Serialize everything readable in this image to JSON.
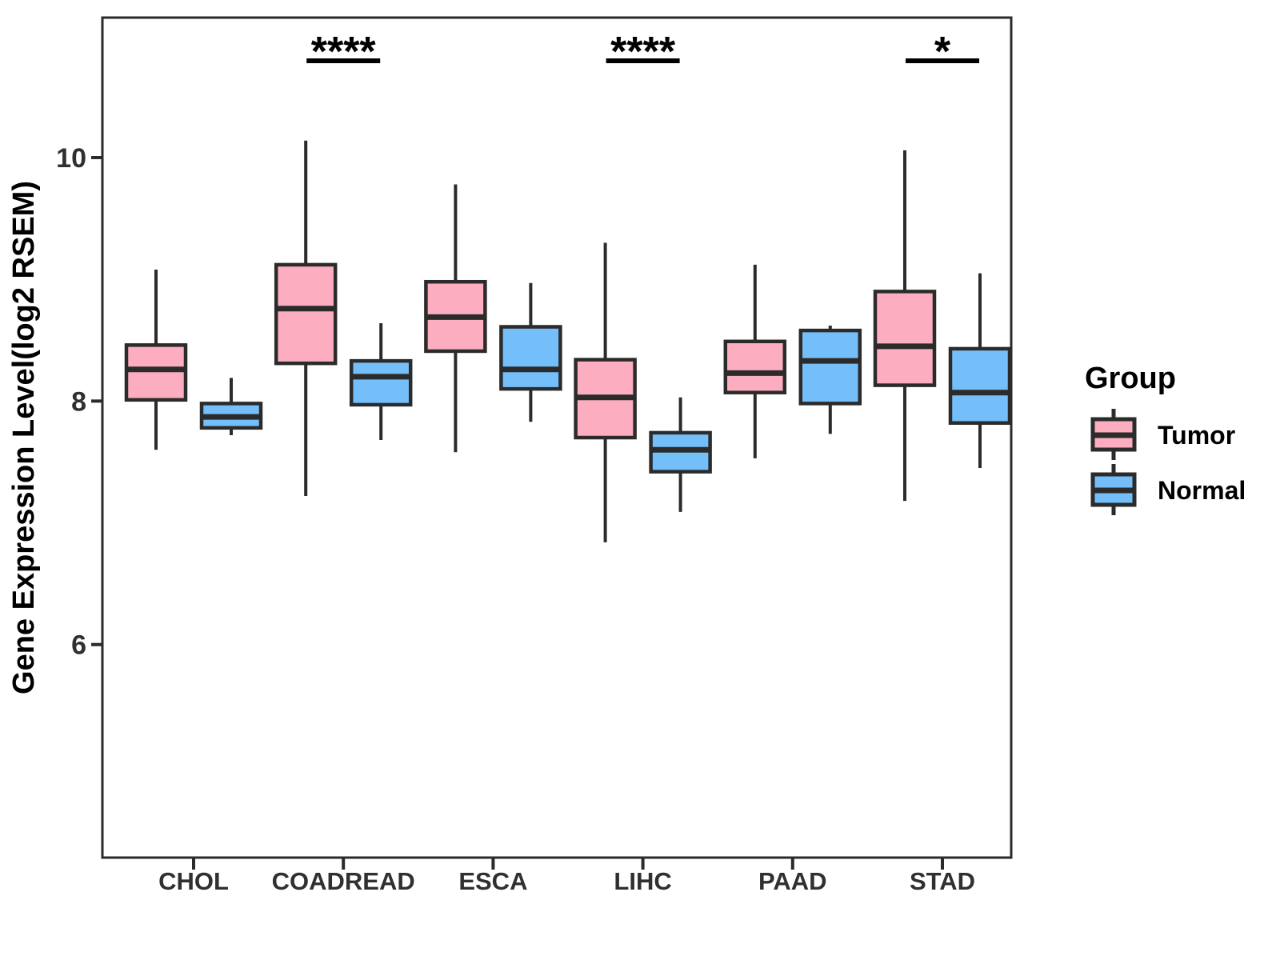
{
  "colors": {
    "tumor_fill": "#FCAEC0",
    "normal_fill": "#74BFFA",
    "stroke": "#2B2B2B",
    "tick_text": "#303030",
    "title_text": "#000000"
  },
  "chart_data": {
    "type": "boxplot",
    "title": "",
    "xlabel": "",
    "ylabel": "Gene Expression Level(log2 RSEM)",
    "categories": [
      "CHOL",
      "COADREAD",
      "ESCA",
      "LIHC",
      "PAAD",
      "STAD"
    ],
    "y_ticks": [
      6,
      8,
      10
    ],
    "ylim": [
      4.25,
      11.15
    ],
    "grid": false,
    "legend": {
      "title": "Group",
      "position": "right",
      "entries": [
        {
          "label": "Tumor",
          "color": "#FCAEC0"
        },
        {
          "label": "Normal",
          "color": "#74BFFA"
        }
      ]
    },
    "series": [
      {
        "name": "Tumor",
        "color": "#FCAEC0",
        "boxes": [
          {
            "category": "CHOL",
            "whisker_low": 7.6,
            "q1": 8.01,
            "median": 8.26,
            "q3": 8.46,
            "whisker_high": 9.08
          },
          {
            "category": "COADREAD",
            "whisker_low": 7.22,
            "q1": 8.31,
            "median": 8.76,
            "q3": 9.12,
            "whisker_high": 10.14
          },
          {
            "category": "ESCA",
            "whisker_low": 7.58,
            "q1": 8.41,
            "median": 8.69,
            "q3": 8.98,
            "whisker_high": 9.78
          },
          {
            "category": "LIHC",
            "whisker_low": 6.84,
            "q1": 7.7,
            "median": 8.03,
            "q3": 8.34,
            "whisker_high": 9.3
          },
          {
            "category": "PAAD",
            "whisker_low": 7.53,
            "q1": 8.07,
            "median": 8.23,
            "q3": 8.49,
            "whisker_high": 9.12
          },
          {
            "category": "STAD",
            "whisker_low": 7.18,
            "q1": 8.13,
            "median": 8.45,
            "q3": 8.9,
            "whisker_high": 10.06
          }
        ]
      },
      {
        "name": "Normal",
        "color": "#74BFFA",
        "boxes": [
          {
            "category": "CHOL",
            "whisker_low": 7.72,
            "q1": 7.78,
            "median": 7.87,
            "q3": 7.98,
            "whisker_high": 8.19
          },
          {
            "category": "COADREAD",
            "whisker_low": 7.68,
            "q1": 7.97,
            "median": 8.2,
            "q3": 8.33,
            "whisker_high": 8.64
          },
          {
            "category": "ESCA",
            "whisker_low": 7.83,
            "q1": 8.1,
            "median": 8.26,
            "q3": 8.61,
            "whisker_high": 8.97
          },
          {
            "category": "LIHC",
            "whisker_low": 7.09,
            "q1": 7.42,
            "median": 7.6,
            "q3": 7.74,
            "whisker_high": 8.03
          },
          {
            "category": "PAAD",
            "whisker_low": 7.73,
            "q1": 7.98,
            "median": 8.33,
            "q3": 8.58,
            "whisker_high": 8.62
          },
          {
            "category": "STAD",
            "whisker_low": 7.45,
            "q1": 7.82,
            "median": 8.07,
            "q3": 8.43,
            "whisker_high": 9.05
          }
        ]
      }
    ],
    "significance": [
      {
        "category": "COADREAD",
        "label": "****"
      },
      {
        "category": "LIHC",
        "label": "****"
      },
      {
        "category": "STAD",
        "label": "*"
      }
    ]
  }
}
